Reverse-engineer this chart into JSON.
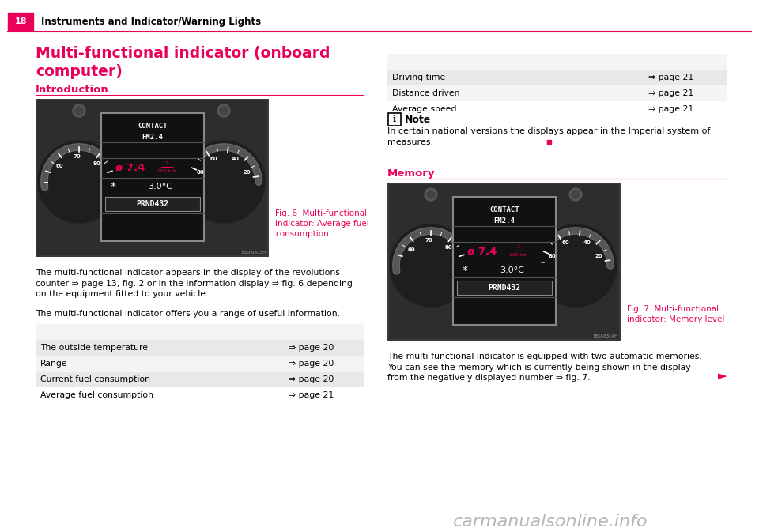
{
  "page_number": "18",
  "header_text": "Instruments and Indicator/Warning Lights",
  "header_bg": "#e8005a",
  "header_line_color": "#e8005a",
  "bg_color": "#ffffff",
  "main_title": "Multi-functional indicator (onboard\ncomputer)",
  "main_title_color": "#e8005a",
  "section1_title": "Introduction",
  "section1_title_color": "#e8005a",
  "section1_underline_color": "#e8005a",
  "section2_title": "Memory",
  "section2_title_color": "#e8005a",
  "section2_underline_color": "#e8005a",
  "fig6_caption": "Fig. 6  Multi-functional\nindicator: Average fuel\nconsumption",
  "fig7_caption": "Fig. 7  Multi-functional\nindicator: Memory level",
  "fig_caption_color": "#e8005a",
  "body_text_color": "#000000",
  "para1": "The multi-functional indicator appears in the display of the revolutions\ncounter ⇒ page 13, fig. 2 or in the information display ⇒ fig. 6 depending\non the equipment fitted to your vehicle.",
  "para2": "The multi-functional indicator offers you a range of useful information.",
  "table1_rows": [
    [
      "The outside temperature",
      "⇒ page 20"
    ],
    [
      "Range",
      "⇒ page 20"
    ],
    [
      "Current fuel consumption",
      "⇒ page 20"
    ],
    [
      "Average fuel consumption",
      "⇒ page 21"
    ]
  ],
  "table2_rows": [
    [
      "Driving time",
      "⇒ page 21"
    ],
    [
      "Distance driven",
      "⇒ page 21"
    ],
    [
      "Average speed",
      "⇒ page 21"
    ]
  ],
  "table_bg_odd": "#e8e8e8",
  "table_bg_even": "#f4f4f4",
  "note_title": "Note",
  "note_text": "In certain national versions the displays appear in the Imperial system of\nmeasures.",
  "memory_para": "The multi-functional indicator is equipped with two automatic memories.\nYou can see the memory which is currently being shown in the display\nfrom the negatively displayed number ⇒ fig. 7.",
  "arrow_color": "#e8005a",
  "link_color": "#e8005a",
  "watermark": "carmanualsonline.info",
  "watermark_color": "#aaaaaa"
}
